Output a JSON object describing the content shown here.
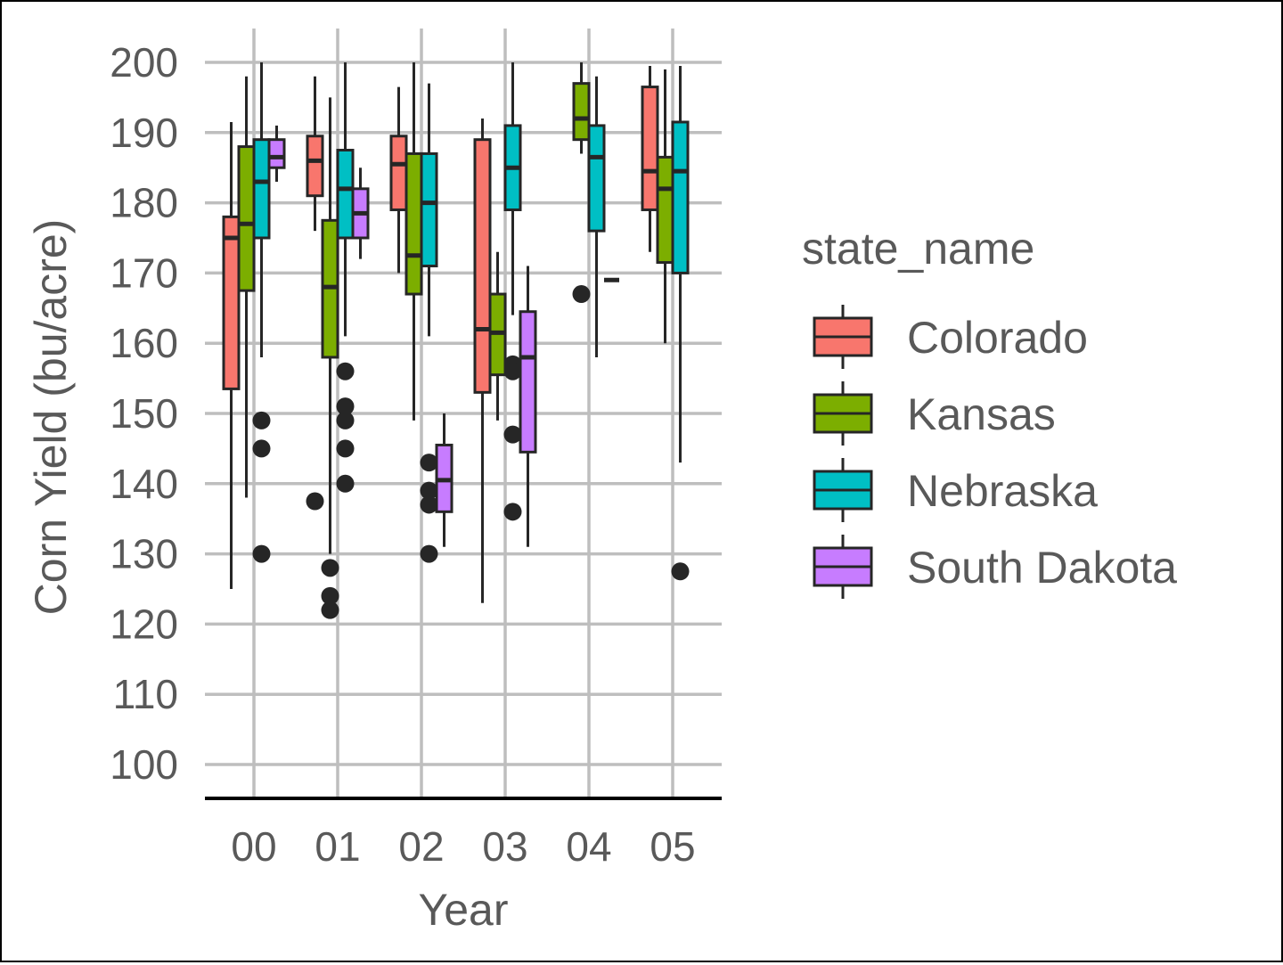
{
  "chart_data": {
    "type": "boxplot",
    "xlabel": "Year",
    "ylabel": "Corn Yield (bu/acre)",
    "ylim": [
      95,
      205
    ],
    "yticks": [
      100,
      110,
      120,
      130,
      140,
      150,
      160,
      170,
      180,
      190,
      200
    ],
    "categories": [
      "00",
      "01",
      "02",
      "03",
      "04",
      "05"
    ],
    "grid": true,
    "legend": {
      "title": "state_name",
      "placement": "right",
      "entries": [
        "Colorado",
        "Kansas",
        "Nebraska",
        "South Dakota"
      ]
    },
    "colors": {
      "Colorado": "#F8766D",
      "Kansas": "#7CAE00",
      "Nebraska": "#00BFC4",
      "South Dakota": "#C77CFF"
    },
    "series": [
      {
        "name": "Colorado",
        "boxes": [
          {
            "x": "00",
            "min": 125,
            "q1": 153.5,
            "median": 175,
            "q3": 178,
            "max": 191.5,
            "outliers": []
          },
          {
            "x": "01",
            "min": 176,
            "q1": 181,
            "median": 186,
            "q3": 189.5,
            "max": 198,
            "outliers": [
              137.5
            ]
          },
          {
            "x": "02",
            "min": 170,
            "q1": 179,
            "median": 185.5,
            "q3": 189.5,
            "max": 196.5,
            "outliers": []
          },
          {
            "x": "03",
            "min": 123,
            "q1": 153,
            "median": 162,
            "q3": 189,
            "max": 192,
            "outliers": []
          },
          {
            "x": "05",
            "min": 173,
            "q1": 179,
            "median": 184.5,
            "q3": 196.5,
            "max": 199.5,
            "outliers": []
          }
        ]
      },
      {
        "name": "Kansas",
        "boxes": [
          {
            "x": "00",
            "min": 138,
            "q1": 167.5,
            "median": 177,
            "q3": 188,
            "max": 198,
            "outliers": []
          },
          {
            "x": "01",
            "min": 130,
            "q1": 158,
            "median": 168,
            "q3": 177.5,
            "max": 195,
            "outliers": [
              128,
              124,
              122
            ]
          },
          {
            "x": "02",
            "min": 149,
            "q1": 167,
            "median": 172.5,
            "q3": 187,
            "max": 200,
            "outliers": []
          },
          {
            "x": "03",
            "min": 149,
            "q1": 155.5,
            "median": 161.5,
            "q3": 167,
            "max": 173,
            "outliers": []
          },
          {
            "x": "04",
            "min": 187,
            "q1": 189,
            "median": 192,
            "q3": 197,
            "max": 200,
            "outliers": [
              167
            ]
          },
          {
            "x": "05",
            "min": 160,
            "q1": 171.5,
            "median": 182,
            "q3": 186.5,
            "max": 199,
            "outliers": []
          }
        ]
      },
      {
        "name": "Nebraska",
        "boxes": [
          {
            "x": "00",
            "min": 158,
            "q1": 175,
            "median": 183,
            "q3": 189,
            "max": 200,
            "outliers": [
              149,
              145,
              130
            ]
          },
          {
            "x": "01",
            "min": 161,
            "q1": 175,
            "median": 182,
            "q3": 187.5,
            "max": 200,
            "outliers": [
              156,
              151,
              149,
              145,
              140
            ]
          },
          {
            "x": "02",
            "min": 161,
            "q1": 171,
            "median": 180,
            "q3": 187,
            "max": 197,
            "outliers": [
              143,
              139,
              137,
              130
            ]
          },
          {
            "x": "03",
            "min": 164,
            "q1": 179,
            "median": 185,
            "q3": 191,
            "max": 200,
            "outliers": [
              157,
              156,
              147,
              136
            ]
          },
          {
            "x": "04",
            "min": 158,
            "q1": 176,
            "median": 186.5,
            "q3": 191,
            "max": 198,
            "outliers": []
          },
          {
            "x": "05",
            "min": 143,
            "q1": 170,
            "median": 184.5,
            "q3": 191.5,
            "max": 199.5,
            "outliers": [
              127.5
            ]
          }
        ]
      },
      {
        "name": "South Dakota",
        "boxes": [
          {
            "x": "00",
            "min": 183,
            "q1": 185,
            "median": 186.5,
            "q3": 189,
            "max": 191,
            "outliers": []
          },
          {
            "x": "01",
            "min": 172,
            "q1": 175,
            "median": 178.5,
            "q3": 182,
            "max": 185,
            "outliers": []
          },
          {
            "x": "02",
            "min": 131,
            "q1": 136,
            "median": 140.5,
            "q3": 145.5,
            "max": 150,
            "outliers": []
          },
          {
            "x": "03",
            "min": 131,
            "q1": 144.5,
            "median": 158,
            "q3": 164.5,
            "max": 171,
            "outliers": []
          },
          {
            "x": "04",
            "min": 169,
            "q1": 169,
            "median": 169,
            "q3": 169,
            "max": 169,
            "outliers": []
          }
        ]
      }
    ]
  }
}
